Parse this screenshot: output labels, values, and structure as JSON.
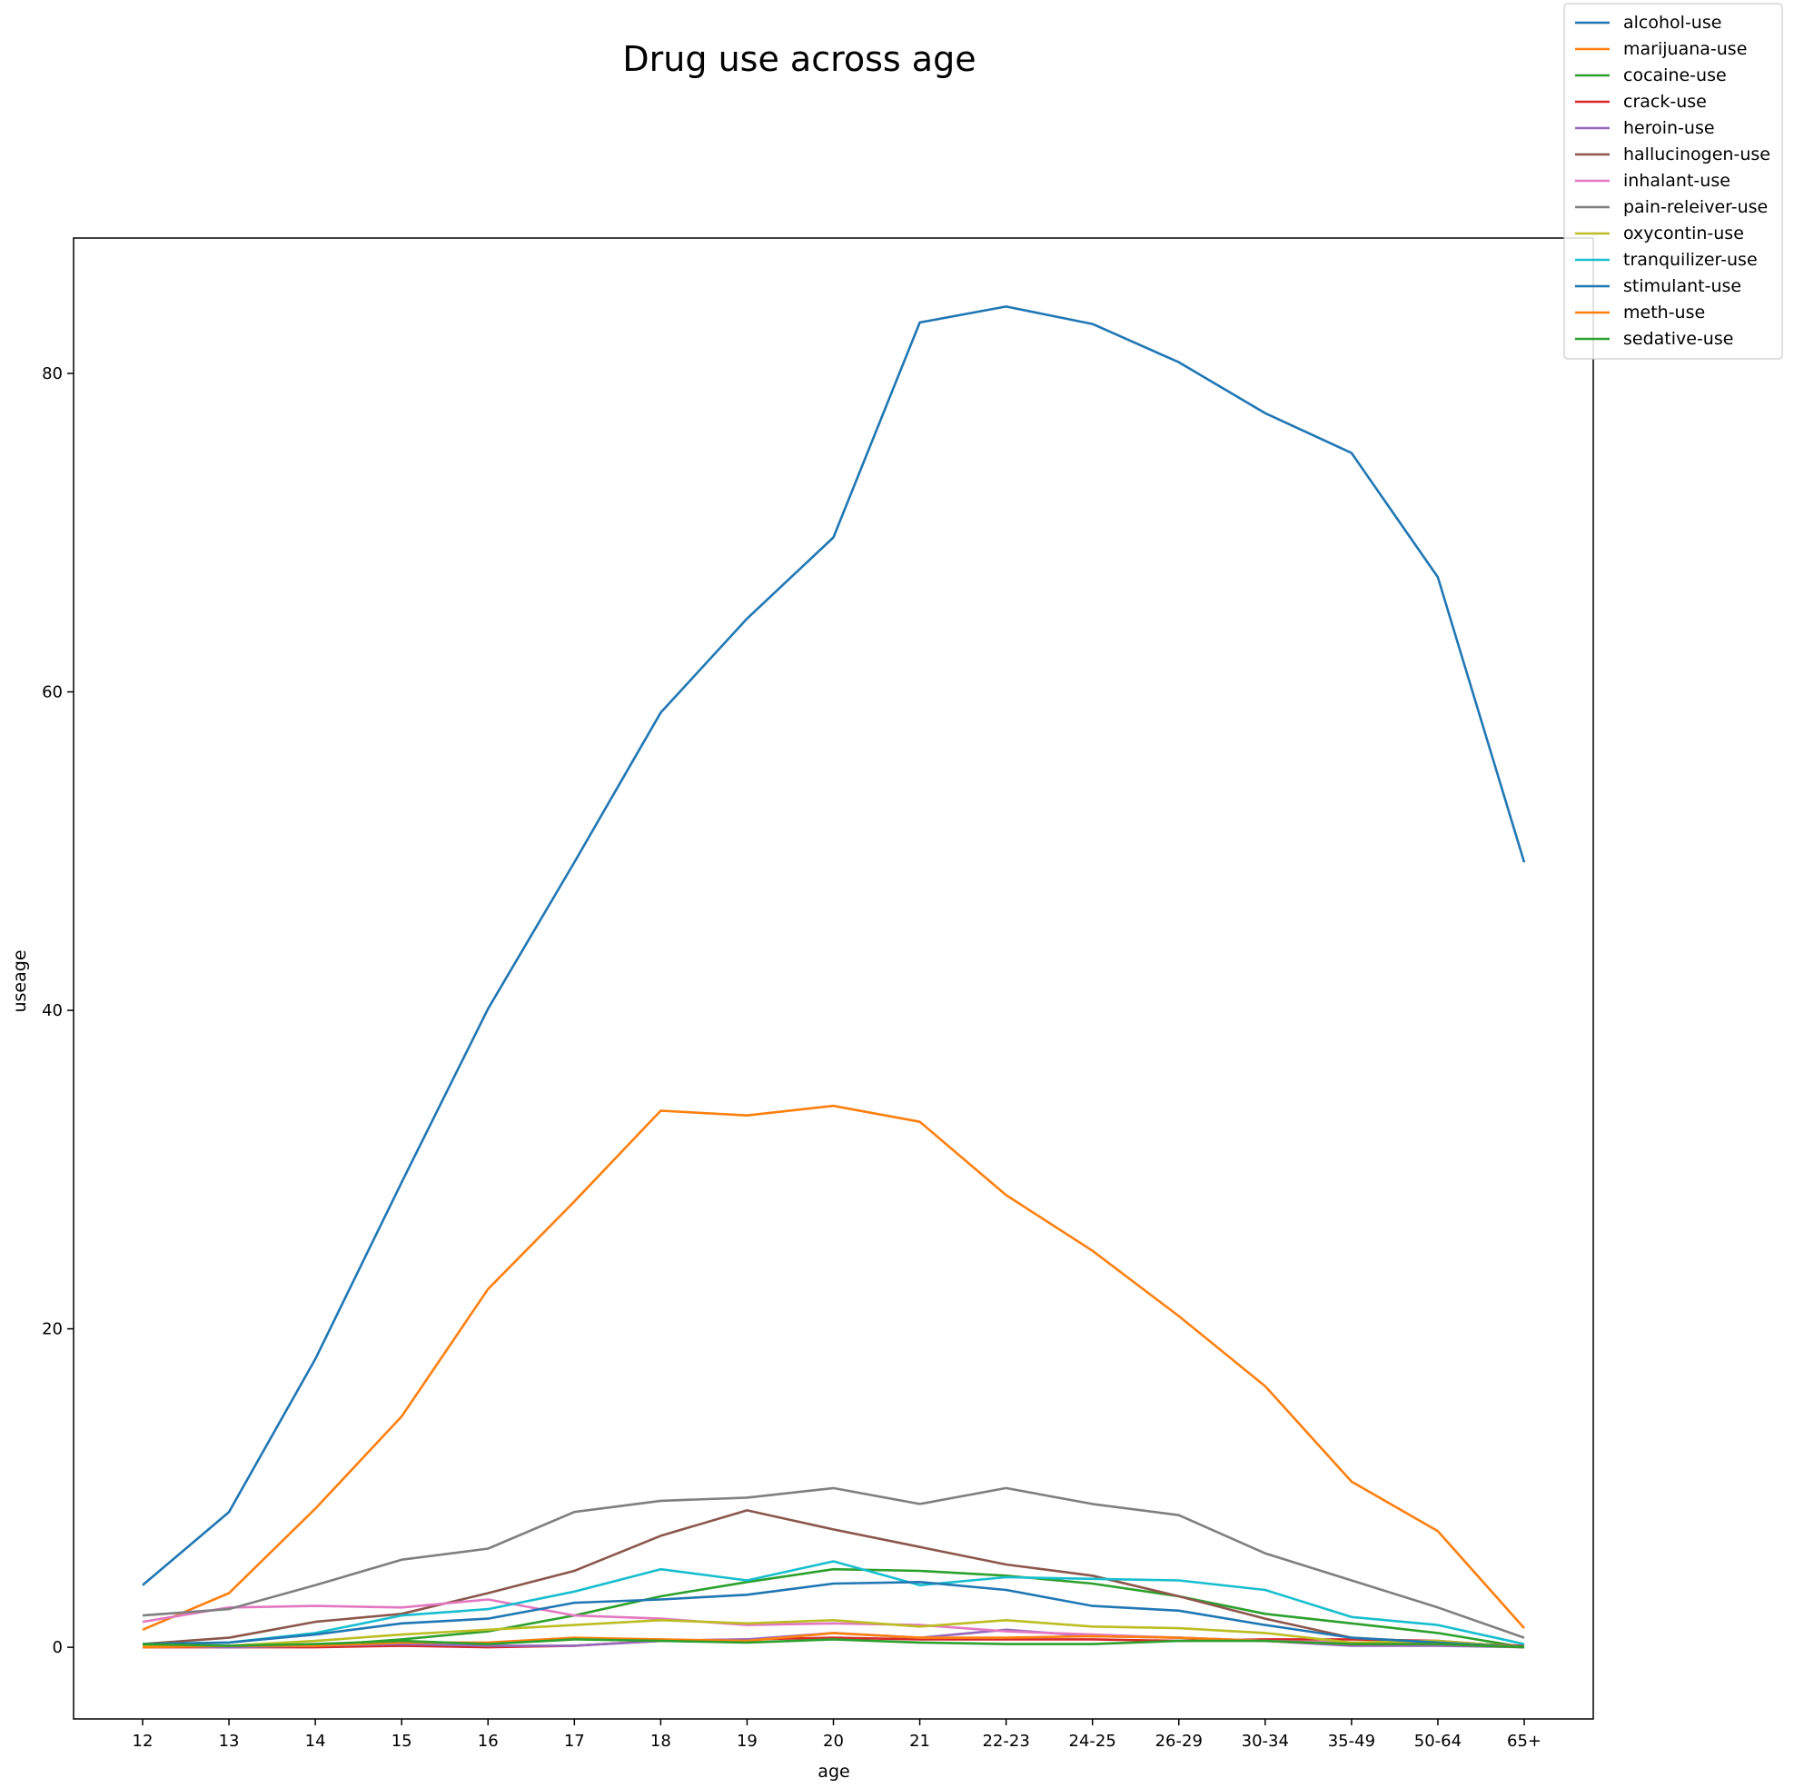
{
  "chart_data": {
    "type": "line",
    "title": "Drug use across age",
    "xlabel": "age",
    "ylabel": "useage",
    "categories": [
      "12",
      "13",
      "14",
      "15",
      "16",
      "17",
      "18",
      "19",
      "20",
      "21",
      "22-23",
      "24-25",
      "26-29",
      "30-34",
      "35-49",
      "50-64",
      "65+"
    ],
    "ylim": [
      -4.5,
      88.5
    ],
    "yticks": [
      0,
      20,
      40,
      60,
      80
    ],
    "grid": false,
    "legend_position": "top-right",
    "series": [
      {
        "name": "alcohol-use",
        "color": "#1f77b4",
        "values": [
          3.9,
          8.5,
          18.1,
          29.2,
          40.1,
          49.3,
          58.7,
          64.6,
          69.7,
          83.2,
          84.2,
          83.1,
          80.7,
          77.5,
          75.0,
          67.2,
          49.3
        ]
      },
      {
        "name": "marijuana-use",
        "color": "#ff7f0e",
        "values": [
          1.1,
          3.4,
          8.7,
          14.5,
          22.5,
          28.0,
          33.7,
          33.4,
          34.0,
          33.0,
          28.4,
          24.9,
          20.8,
          16.4,
          10.4,
          7.3,
          1.2
        ]
      },
      {
        "name": "cocaine-use",
        "color": "#2ca02c",
        "values": [
          0.1,
          0.1,
          0.1,
          0.5,
          1.0,
          2.0,
          3.2,
          4.1,
          4.9,
          4.8,
          4.5,
          4.0,
          3.2,
          2.1,
          1.5,
          0.9,
          0.0
        ]
      },
      {
        "name": "crack-use",
        "color": "#d62728",
        "values": [
          0.0,
          0.0,
          0.0,
          0.1,
          0.0,
          0.1,
          0.4,
          0.5,
          0.6,
          0.5,
          0.5,
          0.5,
          0.4,
          0.5,
          0.5,
          0.4,
          0.0
        ]
      },
      {
        "name": "heroin-use",
        "color": "#9467bd",
        "values": [
          0.1,
          0.0,
          0.1,
          0.2,
          0.1,
          0.1,
          0.4,
          0.5,
          0.9,
          0.6,
          1.1,
          0.7,
          0.6,
          0.4,
          0.1,
          0.1,
          0.0
        ]
      },
      {
        "name": "hallucinogen-use",
        "color": "#8c564b",
        "values": [
          0.2,
          0.6,
          1.6,
          2.1,
          3.4,
          4.8,
          7.0,
          8.6,
          7.4,
          6.3,
          5.2,
          4.5,
          3.2,
          1.8,
          0.6,
          0.3,
          0.1
        ]
      },
      {
        "name": "inhalant-use",
        "color": "#e377c2",
        "values": [
          1.6,
          2.5,
          2.6,
          2.5,
          3.0,
          2.0,
          1.8,
          1.4,
          1.5,
          1.4,
          1.0,
          0.8,
          0.6,
          0.4,
          0.3,
          0.2,
          0.0
        ]
      },
      {
        "name": "pain-releiver-use",
        "color": "#7f7f7f",
        "values": [
          2.0,
          2.4,
          3.9,
          5.5,
          6.2,
          8.5,
          9.2,
          9.4,
          10.0,
          9.0,
          10.0,
          9.0,
          8.3,
          5.9,
          4.2,
          2.5,
          0.6
        ]
      },
      {
        "name": "oxycontin-use",
        "color": "#bcbd22",
        "values": [
          0.1,
          0.1,
          0.4,
          0.8,
          1.1,
          1.4,
          1.7,
          1.5,
          1.7,
          1.3,
          1.7,
          1.3,
          1.2,
          0.9,
          0.3,
          0.4,
          0.0
        ]
      },
      {
        "name": "tranquilizer-use",
        "color": "#17becf",
        "values": [
          0.2,
          0.3,
          0.9,
          2.0,
          2.4,
          3.5,
          4.9,
          4.2,
          5.4,
          3.9,
          4.4,
          4.3,
          4.2,
          3.6,
          1.9,
          1.4,
          0.2
        ]
      },
      {
        "name": "stimulant-use",
        "color": "#1f77b4",
        "values": [
          0.2,
          0.3,
          0.8,
          1.5,
          1.8,
          2.8,
          3.0,
          3.3,
          4.0,
          4.1,
          3.6,
          2.6,
          2.3,
          1.4,
          0.6,
          0.3,
          0.0
        ]
      },
      {
        "name": "meth-use",
        "color": "#ff7f0e",
        "values": [
          0.0,
          0.1,
          0.1,
          0.3,
          0.3,
          0.6,
          0.5,
          0.4,
          0.9,
          0.6,
          0.6,
          0.7,
          0.6,
          0.4,
          0.2,
          0.2,
          0.0
        ]
      },
      {
        "name": "sedative-use",
        "color": "#2ca02c",
        "values": [
          0.2,
          0.1,
          0.2,
          0.4,
          0.2,
          0.5,
          0.4,
          0.3,
          0.5,
          0.3,
          0.2,
          0.2,
          0.4,
          0.4,
          0.2,
          0.2,
          0.0
        ]
      }
    ]
  }
}
